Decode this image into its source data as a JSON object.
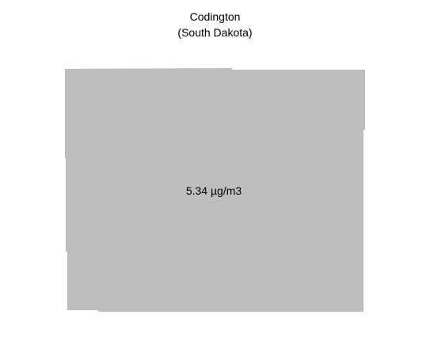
{
  "title": {
    "line1": "Codington",
    "line2": "(South Dakota)"
  },
  "region": {
    "name": "Codington",
    "state": "South Dakota",
    "value_label": "5.34 µg/m3",
    "value": 5.34,
    "unit": "µg/m3",
    "fill_color": "#bebebe"
  }
}
